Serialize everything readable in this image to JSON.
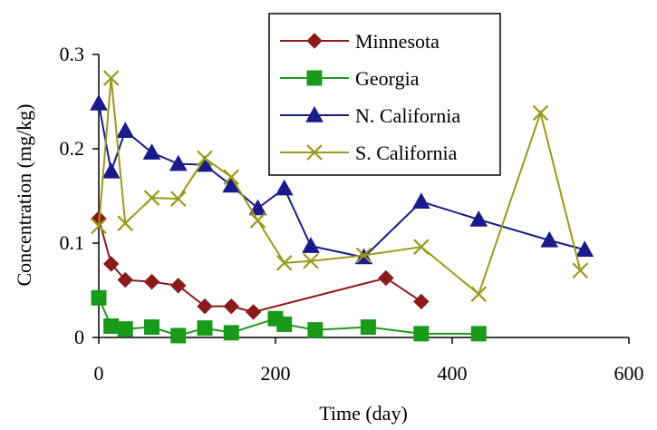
{
  "chart_data": {
    "type": "line",
    "title": "",
    "xlabel": "Time (day)",
    "ylabel": "Concentration (mg/kg)",
    "xlim": [
      0,
      600
    ],
    "ylim": [
      0,
      0.3
    ],
    "xticks": [
      0,
      200,
      400,
      600
    ],
    "yticks": [
      0,
      0.1,
      0.2,
      0.3
    ],
    "xtick_labels": [
      "0",
      "200",
      "400",
      "600"
    ],
    "ytick_labels": [
      "0",
      "0.1",
      "0.2",
      "0.3"
    ],
    "grid": false,
    "legend_position": "top-right",
    "series": [
      {
        "name": "Minnesota",
        "color": "#8B1A1A",
        "marker": "diamond",
        "x": [
          0,
          14,
          30,
          60,
          90,
          120,
          150,
          175,
          325,
          365
        ],
        "y": [
          0.126,
          0.078,
          0.061,
          0.059,
          0.055,
          0.033,
          0.033,
          0.027,
          0.063,
          0.038
        ]
      },
      {
        "name": "Georgia",
        "color": "#1A9A1A",
        "marker": "square",
        "x": [
          0,
          14,
          30,
          60,
          90,
          120,
          150,
          200,
          210,
          245,
          305,
          365,
          430
        ],
        "y": [
          0.042,
          0.012,
          0.009,
          0.011,
          0.002,
          0.01,
          0.005,
          0.02,
          0.014,
          0.008,
          0.011,
          0.004,
          0.004
        ]
      },
      {
        "name": "N. California",
        "color": "#1A1A8B",
        "marker": "triangle",
        "x": [
          0,
          14,
          30,
          60,
          90,
          120,
          150,
          180,
          210,
          240,
          300,
          365,
          430,
          510,
          550
        ],
        "y": [
          0.248,
          0.176,
          0.219,
          0.196,
          0.184,
          0.183,
          0.161,
          0.137,
          0.158,
          0.097,
          0.085,
          0.144,
          0.125,
          0.103,
          0.093
        ]
      },
      {
        "name": "S. California",
        "color": "#9A9A1A",
        "marker": "x",
        "x": [
          0,
          14,
          30,
          60,
          90,
          120,
          150,
          180,
          210,
          240,
          300,
          365,
          430,
          500,
          545
        ],
        "y": [
          0.118,
          0.275,
          0.121,
          0.148,
          0.147,
          0.19,
          0.17,
          0.124,
          0.079,
          0.081,
          0.087,
          0.096,
          0.046,
          0.238,
          0.071
        ]
      }
    ]
  }
}
